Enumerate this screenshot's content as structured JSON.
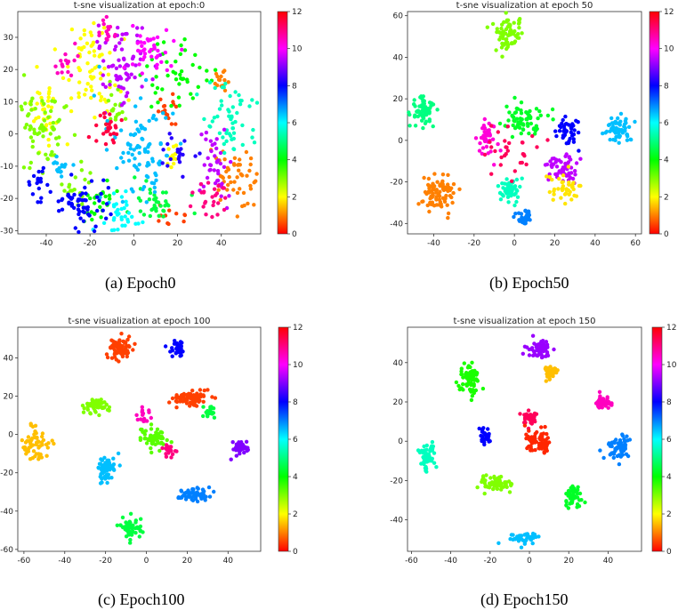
{
  "figure": {
    "captions": [
      "(a) Epoch0",
      "(b) Epoch50",
      "(c) Epoch100",
      "(d) Epoch150"
    ]
  },
  "colorbar": {
    "ticks": [
      0,
      2,
      4,
      6,
      8,
      10,
      12
    ],
    "colormap": "hsv",
    "stops": [
      "#ff0000",
      "#ff8000",
      "#ffff00",
      "#80ff00",
      "#00ff00",
      "#00ff80",
      "#00ffff",
      "#0080ff",
      "#0000ff",
      "#8000ff",
      "#ff00ff",
      "#ff0080",
      "#ff0000"
    ]
  },
  "chart_data": [
    {
      "type": "scatter",
      "title": "t-sne visualization at epoch:0",
      "caption": "(a) Epoch0",
      "xlim": [
        -53,
        58
      ],
      "ylim": [
        -31,
        38
      ],
      "xticks": [
        -40,
        -20,
        0,
        20,
        40
      ],
      "yticks": [
        -30,
        -20,
        -10,
        0,
        10,
        20,
        30
      ],
      "colorbar_range": [
        0,
        12
      ],
      "clusters": [
        {
          "label": 1,
          "cx": 45,
          "cy": -15,
          "sx": 5,
          "sy": 6,
          "n": 50
        },
        {
          "label": 1,
          "cx": 40,
          "cy": 17,
          "sx": 2,
          "sy": 2,
          "n": 15
        },
        {
          "label": 0.5,
          "cx": 15,
          "cy": 7,
          "sx": 3,
          "sy": 3,
          "n": 15
        },
        {
          "label": 0.5,
          "cx": 18,
          "cy": -25,
          "sx": 3,
          "sy": 2,
          "n": 12
        },
        {
          "label": 2,
          "cx": -20,
          "cy": 20,
          "sx": 6,
          "sy": 7,
          "n": 70
        },
        {
          "label": 2,
          "cx": -40,
          "cy": 8,
          "sx": 4,
          "sy": 5,
          "n": 40
        },
        {
          "label": 2,
          "cx": 18,
          "cy": -8,
          "sx": 2,
          "sy": 3,
          "n": 12
        },
        {
          "label": 3,
          "cx": -42,
          "cy": 3,
          "sx": 6,
          "sy": 6,
          "n": 70
        },
        {
          "label": 3,
          "cx": -10,
          "cy": 8,
          "sx": 3,
          "sy": 3,
          "n": 18
        },
        {
          "label": 3,
          "cx": -25,
          "cy": -18,
          "sx": 3,
          "sy": 4,
          "n": 20
        },
        {
          "label": 4,
          "cx": 20,
          "cy": 18,
          "sx": 8,
          "sy": 5,
          "n": 45
        },
        {
          "label": 4,
          "cx": -15,
          "cy": -22,
          "sx": 4,
          "sy": 3,
          "n": 25
        },
        {
          "label": 4.5,
          "cx": 10,
          "cy": -23,
          "sx": 6,
          "sy": 3,
          "n": 35
        },
        {
          "label": 5.5,
          "cx": 44,
          "cy": 5,
          "sx": 5,
          "sy": 6,
          "n": 55
        },
        {
          "label": 6,
          "cx": -5,
          "cy": -25,
          "sx": 5,
          "sy": 3,
          "n": 35
        },
        {
          "label": 6.5,
          "cx": 3,
          "cy": -5,
          "sx": 8,
          "sy": 8,
          "n": 90
        },
        {
          "label": 6.5,
          "cx": -35,
          "cy": -10,
          "sx": 3,
          "sy": 2,
          "n": 15
        },
        {
          "label": 8,
          "cx": -22,
          "cy": -22,
          "sx": 7,
          "sy": 4,
          "n": 60
        },
        {
          "label": 8,
          "cx": -43,
          "cy": -15,
          "sx": 3,
          "sy": 3,
          "n": 20
        },
        {
          "label": 8.3,
          "cx": 20,
          "cy": -5,
          "sx": 4,
          "sy": 4,
          "n": 20
        },
        {
          "label": 9.5,
          "cx": 38,
          "cy": -8,
          "sx": 4,
          "sy": 6,
          "n": 40
        },
        {
          "label": 9.5,
          "cx": -5,
          "cy": 22,
          "sx": 7,
          "sy": 7,
          "n": 70
        },
        {
          "label": 10,
          "cx": 7,
          "cy": 25,
          "sx": 5,
          "sy": 4,
          "n": 40
        },
        {
          "label": 10.5,
          "cx": -30,
          "cy": 22,
          "sx": 3,
          "sy": 3,
          "n": 15
        },
        {
          "label": 10.5,
          "cx": -12,
          "cy": 33,
          "sx": 2,
          "sy": 2,
          "n": 15
        },
        {
          "label": 11,
          "cx": 35,
          "cy": -20,
          "sx": 4,
          "sy": 3,
          "n": 25
        },
        {
          "label": 11.5,
          "cx": -12,
          "cy": 2,
          "sx": 4,
          "sy": 3,
          "n": 25
        }
      ]
    },
    {
      "type": "scatter",
      "title": "t-sne visualization at epoch 50",
      "caption": "(b) Epoch50",
      "xlim": [
        -53,
        63
      ],
      "ylim": [
        -45,
        62
      ],
      "xticks": [
        -40,
        -20,
        0,
        20,
        40,
        60
      ],
      "yticks": [
        -40,
        -20,
        0,
        20,
        40,
        60
      ],
      "colorbar_range": [
        0,
        12
      ],
      "clusters": [
        {
          "label": 3,
          "cx": -3,
          "cy": 51,
          "sx": 3,
          "sy": 4,
          "n": 70
        },
        {
          "label": 5,
          "cx": -46,
          "cy": 14,
          "sx": 3,
          "sy": 3,
          "n": 70
        },
        {
          "label": 6.5,
          "cx": 52,
          "cy": 5,
          "sx": 3,
          "sy": 3,
          "n": 60
        },
        {
          "label": 1,
          "cx": -38,
          "cy": -25,
          "sx": 4,
          "sy": 5,
          "n": 80
        },
        {
          "label": 4.3,
          "cx": 4,
          "cy": 10,
          "sx": 5,
          "sy": 4,
          "n": 70
        },
        {
          "label": 8,
          "cx": 26,
          "cy": 5,
          "sx": 3,
          "sy": 3,
          "n": 40
        },
        {
          "label": 9.5,
          "cx": 24,
          "cy": -13,
          "sx": 4,
          "sy": 5,
          "n": 55
        },
        {
          "label": 1.8,
          "cx": 24,
          "cy": -23,
          "sx": 4,
          "sy": 3,
          "n": 40
        },
        {
          "label": 5.5,
          "cx": -2,
          "cy": -24,
          "sx": 3,
          "sy": 3,
          "n": 50
        },
        {
          "label": 7,
          "cx": 5,
          "cy": -37,
          "sx": 2,
          "sy": 2,
          "n": 30
        },
        {
          "label": 10.3,
          "cx": -13,
          "cy": 2,
          "sx": 3,
          "sy": 4,
          "n": 40
        },
        {
          "label": 11.3,
          "cx": -4,
          "cy": -4,
          "sx": 6,
          "sy": 6,
          "n": 30
        }
      ]
    },
    {
      "type": "scatter",
      "title": "t-sne visualization at epoch 100",
      "caption": "(c) Epoch100",
      "xlim": [
        -63,
        56
      ],
      "ylim": [
        -61,
        56
      ],
      "xticks": [
        -60,
        -40,
        -20,
        0,
        20,
        40
      ],
      "yticks": [
        -60,
        -40,
        -20,
        0,
        20,
        40
      ],
      "colorbar_range": [
        0,
        12
      ],
      "clusters": [
        {
          "label": 0.5,
          "cx": -13,
          "cy": 45,
          "sx": 3,
          "sy": 3,
          "n": 75
        },
        {
          "label": 8,
          "cx": 15,
          "cy": 45,
          "sx": 2,
          "sy": 2,
          "n": 40
        },
        {
          "label": 3,
          "cx": -25,
          "cy": 15,
          "sx": 3,
          "sy": 2,
          "n": 60
        },
        {
          "label": 0.5,
          "cx": 22,
          "cy": 19,
          "sx": 5,
          "sy": 2,
          "n": 75
        },
        {
          "label": 4.5,
          "cx": 31,
          "cy": 12,
          "sx": 2,
          "sy": 2,
          "n": 20
        },
        {
          "label": 1.5,
          "cx": -54,
          "cy": -4,
          "sx": 3,
          "sy": 4,
          "n": 60
        },
        {
          "label": 3.3,
          "cx": 3,
          "cy": -2,
          "sx": 3,
          "sy": 3,
          "n": 60
        },
        {
          "label": 11,
          "cx": 11,
          "cy": -8,
          "sx": 2,
          "sy": 2,
          "n": 20
        },
        {
          "label": 10.5,
          "cx": -1,
          "cy": 10,
          "sx": 1.5,
          "sy": 2,
          "n": 15
        },
        {
          "label": 9,
          "cx": 46,
          "cy": -7,
          "sx": 2,
          "sy": 2,
          "n": 40
        },
        {
          "label": 6.5,
          "cx": -20,
          "cy": -18,
          "sx": 2,
          "sy": 4,
          "n": 60
        },
        {
          "label": 7,
          "cx": 24,
          "cy": -31,
          "sx": 4,
          "sy": 2,
          "n": 60
        },
        {
          "label": 4.5,
          "cx": -8,
          "cy": -48,
          "sx": 3,
          "sy": 3,
          "n": 50
        }
      ]
    },
    {
      "type": "scatter",
      "title": "t-sne visualization at epoch 150",
      "caption": "(d) Epoch150",
      "xlim": [
        -62,
        57
      ],
      "ylim": [
        -56,
        58
      ],
      "xticks": [
        -60,
        -40,
        -20,
        0,
        20,
        40
      ],
      "yticks": [
        -40,
        -20,
        0,
        20,
        40
      ],
      "colorbar_range": [
        0,
        12
      ],
      "clusters": [
        {
          "label": 9.2,
          "cx": 5,
          "cy": 47,
          "sx": 3,
          "sy": 2,
          "n": 60
        },
        {
          "label": 1.5,
          "cx": 11,
          "cy": 35,
          "sx": 2,
          "sy": 2,
          "n": 40
        },
        {
          "label": 3.8,
          "cx": -30,
          "cy": 31,
          "sx": 3,
          "sy": 4,
          "n": 70
        },
        {
          "label": 10.5,
          "cx": 37,
          "cy": 20,
          "sx": 2,
          "sy": 1.5,
          "n": 40
        },
        {
          "label": 11.3,
          "cx": 0,
          "cy": 12,
          "sx": 2,
          "sy": 2,
          "n": 35
        },
        {
          "label": 8,
          "cx": -23,
          "cy": 3,
          "sx": 1.5,
          "sy": 2,
          "n": 30
        },
        {
          "label": 0.3,
          "cx": 5,
          "cy": 0,
          "sx": 3,
          "sy": 3,
          "n": 70
        },
        {
          "label": 7,
          "cx": 45,
          "cy": -3,
          "sx": 3,
          "sy": 3,
          "n": 60
        },
        {
          "label": 5.5,
          "cx": -52,
          "cy": -8,
          "sx": 2,
          "sy": 4,
          "n": 60
        },
        {
          "label": 3,
          "cx": -16,
          "cy": -22,
          "sx": 4,
          "sy": 2,
          "n": 70
        },
        {
          "label": 4.3,
          "cx": 22,
          "cy": -28,
          "sx": 2,
          "sy": 3,
          "n": 50
        },
        {
          "label": 6.5,
          "cx": -3,
          "cy": -49,
          "sx": 4,
          "sy": 1.5,
          "n": 45
        }
      ]
    }
  ]
}
